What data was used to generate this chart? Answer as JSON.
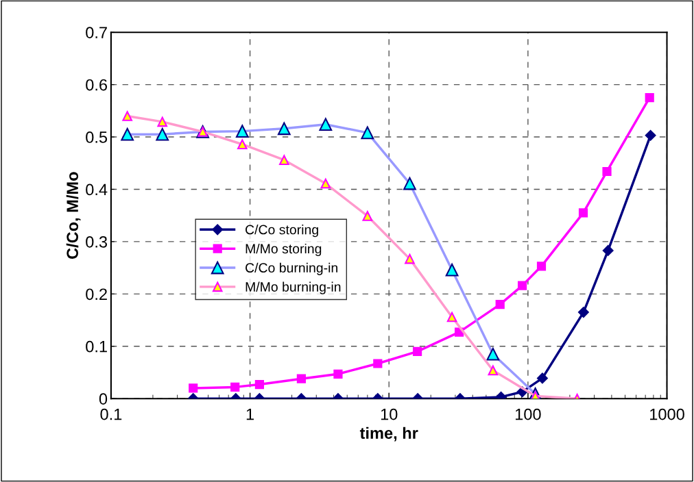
{
  "chart_data": {
    "type": "line",
    "xlabel": "time, hr",
    "ylabel": "C/Co, M/Mo",
    "log": "x",
    "xlim": [
      0.1,
      1000
    ],
    "xticks": [
      0.1,
      1,
      10,
      100,
      1000
    ],
    "ylim": [
      0,
      0.7
    ],
    "yticks": [
      0,
      0.1,
      0.2,
      0.3,
      0.4,
      0.5,
      0.6,
      0.7
    ],
    "grid": true,
    "legend": "left",
    "line_style": "solid",
    "series": [
      {
        "name": "C/Co storing",
        "color": "#000080",
        "marker": "diamond",
        "x": [
          0.39,
          0.79,
          1.17,
          2.34,
          4.3,
          8.3,
          16.1,
          32.5,
          64,
          91,
          127,
          251,
          377,
          762
        ],
        "values": [
          0,
          0,
          0,
          0,
          0,
          0,
          0,
          0,
          0.003,
          0.013,
          0.039,
          0.165,
          0.283,
          0.503
        ]
      },
      {
        "name": "M/Mo storing",
        "color": "#ff00ff",
        "marker": "square",
        "x": [
          0.39,
          0.78,
          1.17,
          2.34,
          4.3,
          8.3,
          16,
          32,
          63,
          91,
          125,
          250,
          370,
          750
        ],
        "values": [
          0.02,
          0.022,
          0.027,
          0.038,
          0.047,
          0.067,
          0.09,
          0.127,
          0.18,
          0.216,
          0.253,
          0.355,
          0.434,
          0.575
        ]
      },
      {
        "name": "C/Co burning-in",
        "color": "#9999ff",
        "marker": "triangle",
        "x": [
          0.131,
          0.234,
          0.457,
          0.88,
          1.76,
          3.5,
          7.0,
          14.1,
          28.4,
          56,
          113
        ],
        "values": [
          0.505,
          0.505,
          0.51,
          0.511,
          0.516,
          0.524,
          0.508,
          0.411,
          0.246,
          0.085,
          0.009
        ]
      },
      {
        "name": "M/Mo burning-in",
        "color": "#ff99cc",
        "marker": "triangle",
        "x": [
          0.131,
          0.234,
          0.457,
          0.88,
          1.76,
          3.5,
          7.0,
          14.1,
          28.4,
          56,
          113,
          226
        ],
        "values": [
          0.54,
          0.529,
          0.51,
          0.486,
          0.456,
          0.411,
          0.349,
          0.267,
          0.156,
          0.054,
          0.005,
          0
        ]
      }
    ]
  }
}
